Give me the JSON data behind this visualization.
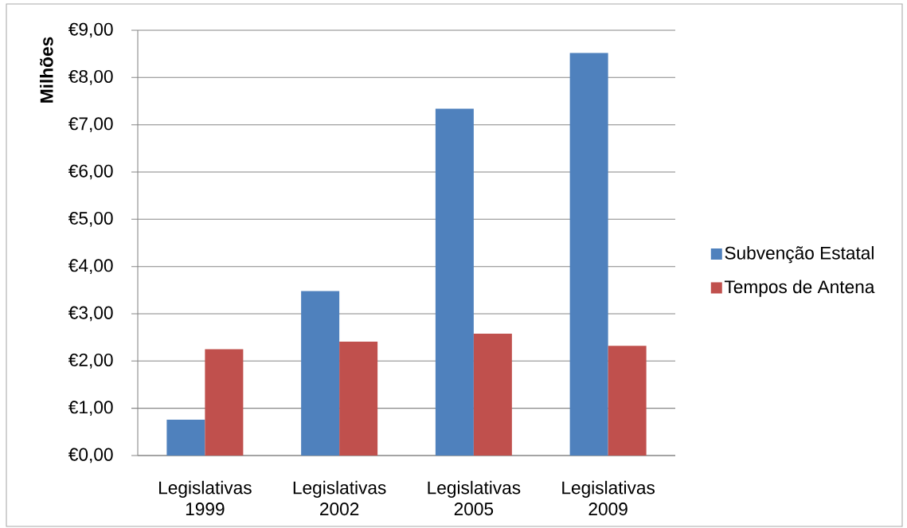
{
  "chart_data": {
    "type": "bar",
    "ylabel": "Milhões",
    "categories": [
      "Legislativas 1999",
      "Legislativas 2002",
      "Legislativas 2005",
      "Legislativas 2009"
    ],
    "series": [
      {
        "name": "Subvenção Estatal",
        "color": "#4f81bd",
        "values": [
          0.76,
          3.48,
          7.34,
          8.52
        ]
      },
      {
        "name": "Tempos de Antena",
        "color": "#c0504d",
        "values": [
          2.25,
          2.41,
          2.58,
          2.32
        ]
      }
    ],
    "ylim": [
      0,
      9
    ],
    "yticks": [
      {
        "value": 0,
        "label": "€0,00"
      },
      {
        "value": 1,
        "label": "€1,00"
      },
      {
        "value": 2,
        "label": "€2,00"
      },
      {
        "value": 3,
        "label": "€3,00"
      },
      {
        "value": 4,
        "label": "€4,00"
      },
      {
        "value": 5,
        "label": "€5,00"
      },
      {
        "value": 6,
        "label": "€6,00"
      },
      {
        "value": 7,
        "label": "€7,00"
      },
      {
        "value": 8,
        "label": "€8,00"
      },
      {
        "value": 9,
        "label": "€9,00"
      }
    ],
    "grid": "y",
    "legend": "right"
  }
}
